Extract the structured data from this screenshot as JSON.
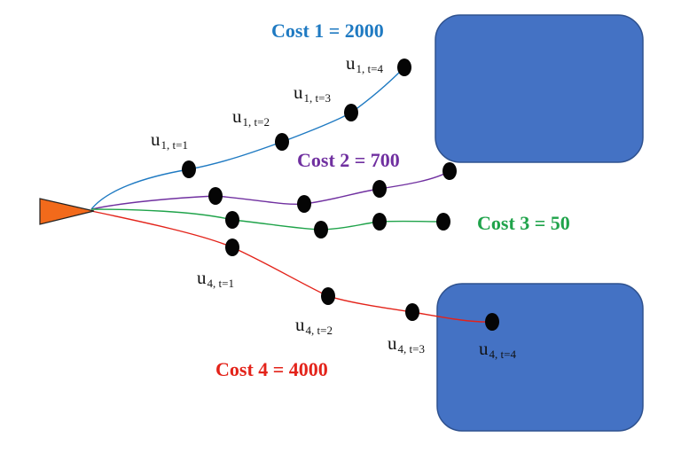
{
  "colors": {
    "obstacle_fill": "#4472c4",
    "obstacle_stroke": "#2f528f",
    "agent_fill": "#f26a1b",
    "node_fill": "#050505",
    "path_1": "#1f7ac2",
    "path_2": "#7030a0",
    "path_3": "#1fa34a",
    "path_4": "#e3231a"
  },
  "icons": {
    "agent": "orange-triangle-icon"
  },
  "trajectories": [
    {
      "id": "1",
      "cost_label": "Cost 1 = 2000",
      "color": "#1f7ac2",
      "nodes": [
        {
          "base": "u",
          "sub": "1, t=1"
        },
        {
          "base": "u",
          "sub": "1, t=2"
        },
        {
          "base": "u",
          "sub": "1, t=3"
        },
        {
          "base": "u",
          "sub": "1, t=4"
        }
      ]
    },
    {
      "id": "2",
      "cost_label": "Cost 2 = 700",
      "color": "#7030a0",
      "nodes": []
    },
    {
      "id": "3",
      "cost_label": "Cost 3 = 50",
      "color": "#1fa34a",
      "nodes": []
    },
    {
      "id": "4",
      "cost_label": "Cost 4 = 4000",
      "color": "#e3231a",
      "nodes": [
        {
          "base": "u",
          "sub": "4, t=1"
        },
        {
          "base": "u",
          "sub": "4, t=2"
        },
        {
          "base": "u",
          "sub": "4, t=3"
        },
        {
          "base": "u",
          "sub": "4, t=4"
        }
      ]
    }
  ]
}
